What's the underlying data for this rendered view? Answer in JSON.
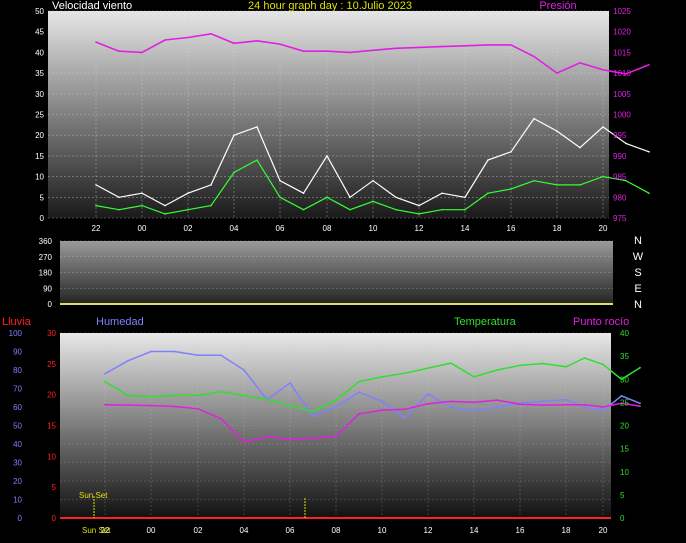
{
  "header": {
    "left_label": "Velocidad viento",
    "center_title": "24 hour graph day : 10.Julio 2023",
    "right_label": "Presión"
  },
  "colors": {
    "wind_gust": "#ffffff",
    "wind_avg": "#33ff33",
    "pressure": "#e020e0",
    "humidity": "#8080ff",
    "temperature": "#33dd33",
    "dewpoint": "#e020e0",
    "rain": "#ff2020",
    "direction": "#e0e060",
    "sunset": "#e0e000"
  },
  "direction_panel": {
    "compass_labels": [
      "N",
      "W",
      "S",
      "E",
      "N"
    ]
  },
  "bottom_panel": {
    "rain_label": "Lluvia",
    "humidity_label": "Humedad",
    "temperature_label": "Temperatura",
    "dewpoint_label": "Punto rocío",
    "sunset_label": "Sun Set",
    "sunset_axis_label": "Sun Set"
  },
  "chart_data": [
    {
      "type": "line",
      "x_hours": [
        "22",
        "00",
        "02",
        "04",
        "06",
        "08",
        "10",
        "12",
        "14",
        "16",
        "18",
        "20"
      ],
      "left_axis": {
        "ylim": [
          0,
          50
        ],
        "ticks": [
          0,
          5,
          10,
          15,
          20,
          25,
          30,
          35,
          40,
          45,
          50
        ]
      },
      "right_axis": {
        "ylim": [
          975,
          1025
        ],
        "ticks": [
          975,
          980,
          985,
          990,
          995,
          1000,
          1005,
          1010,
          1015,
          1020,
          1025
        ]
      },
      "grid": true,
      "series": [
        {
          "key": "gust",
          "axis": "left",
          "t": [
            0,
            1,
            2,
            3,
            4,
            5,
            6,
            7,
            8,
            9,
            10,
            11,
            12,
            13,
            14,
            15,
            16,
            17,
            18,
            19,
            20,
            21,
            22,
            23,
            24
          ],
          "values": [
            8,
            5,
            6,
            3,
            6,
            8,
            20,
            22,
            9,
            6,
            15,
            5,
            9,
            5,
            3,
            6,
            5,
            14,
            16,
            24,
            21,
            17,
            22,
            18,
            16
          ]
        },
        {
          "key": "avg",
          "axis": "left",
          "t": [
            0,
            1,
            2,
            3,
            4,
            5,
            6,
            7,
            8,
            9,
            10,
            11,
            12,
            13,
            14,
            15,
            16,
            17,
            18,
            19,
            20,
            21,
            22,
            23,
            24
          ],
          "values": [
            3,
            2,
            3,
            1,
            2,
            3,
            11,
            14,
            5,
            2,
            5,
            2,
            4,
            2,
            1,
            2,
            2,
            6,
            7,
            9,
            8,
            8,
            10,
            9,
            6
          ]
        },
        {
          "key": "pressure",
          "axis": "right",
          "t": [
            0,
            1,
            2,
            3,
            4,
            5,
            6,
            7,
            8,
            9,
            10,
            11,
            12,
            13,
            14,
            15,
            16,
            17,
            18,
            19,
            20,
            21,
            22,
            23,
            24
          ],
          "values": [
            1017.5,
            1015.3,
            1015.0,
            1018.0,
            1018.6,
            1019.5,
            1017.2,
            1017.8,
            1017.0,
            1015.3,
            1015.3,
            1015.0,
            1015.5,
            1016.0,
            1016.2,
            1016.4,
            1016.6,
            1016.8,
            1016.8,
            1014.0,
            1010.0,
            1012.5,
            1010.8,
            1009.8,
            1012.0
          ]
        }
      ]
    },
    {
      "type": "line",
      "left_axis": {
        "ylim": [
          0,
          360
        ],
        "ticks": [
          0,
          90,
          180,
          270,
          360
        ]
      },
      "series": [
        {
          "key": "direction",
          "t": [
            0,
            24
          ],
          "values": [
            0,
            0
          ]
        }
      ]
    },
    {
      "type": "line",
      "x_hours": [
        "22",
        "00",
        "02",
        "04",
        "06",
        "08",
        "10",
        "12",
        "14",
        "16",
        "18",
        "20"
      ],
      "humidity_axis": {
        "ylim": [
          0,
          100
        ],
        "ticks": [
          0,
          10,
          20,
          30,
          40,
          50,
          60,
          70,
          80,
          90,
          100
        ]
      },
      "rain_axis": {
        "ylim": [
          0,
          30
        ],
        "ticks": [
          0,
          5,
          10,
          15,
          20,
          25,
          30
        ]
      },
      "temperature_axis": {
        "ylim": [
          0,
          40
        ],
        "ticks": [
          0,
          5,
          10,
          15,
          20,
          25,
          30,
          35,
          40
        ]
      },
      "grid": true,
      "series": [
        {
          "key": "humidity",
          "axis": "humidity",
          "t": [
            0,
            1,
            2,
            3,
            4,
            5,
            6,
            7,
            8,
            9,
            10,
            11,
            12,
            13,
            14,
            15,
            16,
            17,
            18,
            19,
            20,
            21,
            22,
            23,
            24
          ],
          "values": [
            78,
            85,
            90,
            90,
            88,
            88,
            80,
            64,
            73,
            55,
            60,
            68,
            63,
            54,
            67,
            60,
            58,
            60,
            62,
            63,
            64,
            60,
            58,
            66,
            62
          ]
        },
        {
          "key": "temperature",
          "axis": "temperature",
          "t": [
            0,
            1,
            2,
            3,
            4,
            5,
            6,
            7,
            8,
            9,
            10,
            11,
            12,
            13,
            14,
            15,
            16,
            17,
            18,
            19,
            20,
            21,
            22,
            23,
            24
          ],
          "values": [
            29.5,
            26.5,
            26.2,
            26.5,
            26.5,
            27.3,
            26.5,
            25.6,
            24.3,
            23.0,
            25.5,
            29.5,
            30.5,
            31.3,
            32.4,
            33.5,
            30.5,
            32.0,
            33.0,
            33.4,
            32.7,
            34.6,
            33.2,
            30.0,
            32.5
          ]
        },
        {
          "key": "dewpoint",
          "axis": "temperature",
          "t": [
            0,
            1,
            2,
            3,
            4,
            5,
            6,
            7,
            8,
            9,
            10,
            11,
            12,
            13,
            14,
            15,
            16,
            17,
            18,
            19,
            20,
            21,
            22,
            23,
            24
          ],
          "values": [
            24.5,
            24.4,
            24.3,
            24.1,
            23.6,
            21.5,
            16.4,
            17.6,
            17.0,
            17.2,
            17.7,
            22.5,
            23.3,
            23.5,
            24.7,
            25.2,
            25.0,
            25.5,
            24.6,
            24.4,
            24.5,
            24.5,
            24.0,
            24.8,
            24.2
          ]
        },
        {
          "key": "rain",
          "axis": "rain",
          "t": [
            0,
            24
          ],
          "values": [
            0,
            0
          ]
        }
      ]
    }
  ]
}
